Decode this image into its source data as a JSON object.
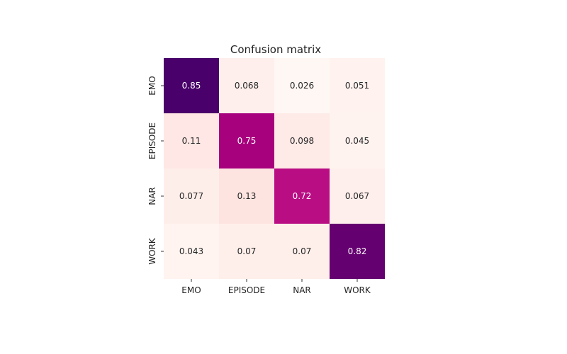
{
  "chart_data": {
    "type": "heatmap",
    "title": "Confusion matrix",
    "x_labels": [
      "EMO",
      "EPISODE",
      "NAR",
      "WORK"
    ],
    "y_labels": [
      "EMO",
      "EPISODE",
      "NAR",
      "WORK"
    ],
    "values": [
      [
        0.85,
        0.068,
        0.026,
        0.051
      ],
      [
        0.11,
        0.75,
        0.098,
        0.045
      ],
      [
        0.077,
        0.13,
        0.72,
        0.067
      ],
      [
        0.043,
        0.07,
        0.07,
        0.82
      ]
    ],
    "cell_labels": [
      [
        "0.85",
        "0.068",
        "0.026",
        "0.051"
      ],
      [
        "0.11",
        "0.75",
        "0.098",
        "0.045"
      ],
      [
        "0.077",
        "0.13",
        "0.72",
        "0.067"
      ],
      [
        "0.043",
        "0.07",
        "0.07",
        "0.82"
      ]
    ],
    "colormap": {
      "low": "#fff7f3",
      "mid": "#f768a1",
      "high": "#49006a"
    },
    "colorbar": false,
    "grid": false
  }
}
